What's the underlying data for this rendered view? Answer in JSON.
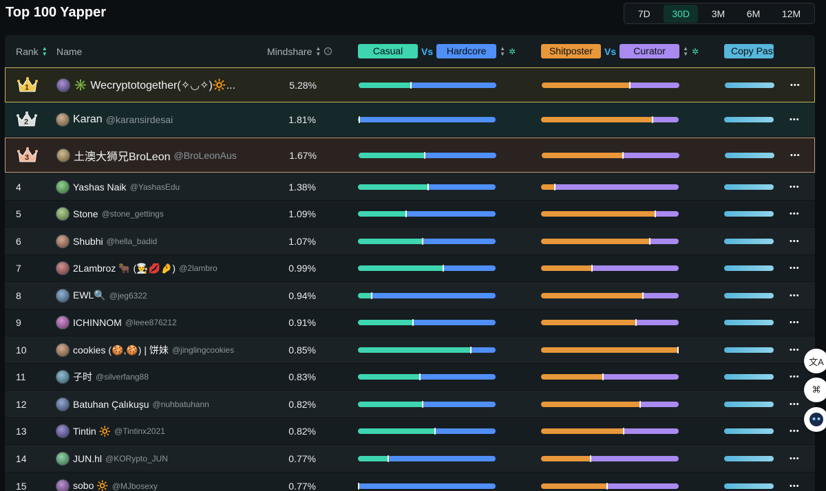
{
  "page": {
    "title": "Top 100 Yapper"
  },
  "periods": {
    "items": [
      "7D",
      "30D",
      "3M",
      "6M",
      "12M"
    ],
    "active": "30D"
  },
  "header": {
    "rank": "Rank",
    "name": "Name",
    "mindshare": "Mindshare",
    "casual": "Casual",
    "vs": "Vs",
    "hardcore": "Hardcore",
    "shitposter": "Shitposter",
    "curator": "Curator",
    "copy": "Copy Past"
  },
  "colors": {
    "accent": "#3fe0b5",
    "casual": "#3dd6b0",
    "hardcore": "#4f8ff7",
    "shitposter": "#e8973a",
    "curator": "#a98af0",
    "copy": "#57b6db"
  },
  "rows": [
    {
      "rank": "1",
      "name": "✳️ Wecryptotogether(✧◡✧)🔆...",
      "handle": "",
      "mindshare": "5.28%",
      "casual_hardcore": 0.38,
      "shit_curator": 0.64,
      "crown": "gold"
    },
    {
      "rank": "2",
      "name": "Karan",
      "handle": "@karansirdesai",
      "mindshare": "1.81%",
      "casual_hardcore": 0.01,
      "shit_curator": 0.81,
      "crown": "silver"
    },
    {
      "rank": "3",
      "name": "土澳大狮兄BroLeon",
      "handle": "@BroLeonAus",
      "mindshare": "1.67%",
      "casual_hardcore": 0.48,
      "shit_curator": 0.59,
      "crown": "bronze"
    },
    {
      "rank": "4",
      "name": "Yashas Naik",
      "handle": "@YashasEdu",
      "mindshare": "1.38%",
      "casual_hardcore": 0.51,
      "shit_curator": 0.1,
      "crown": ""
    },
    {
      "rank": "5",
      "name": "Stone",
      "handle": "@stone_gettings",
      "mindshare": "1.09%",
      "casual_hardcore": 0.35,
      "shit_curator": 0.83,
      "crown": ""
    },
    {
      "rank": "6",
      "name": "Shubhi",
      "handle": "@hella_badid",
      "mindshare": "1.07%",
      "casual_hardcore": 0.47,
      "shit_curator": 0.79,
      "crown": ""
    },
    {
      "rank": "7",
      "name": "2Lambroz 🐂 (👨‍🍳💋🤌)",
      "handle": "@2lambro",
      "mindshare": "0.99%",
      "casual_hardcore": 0.62,
      "shit_curator": 0.37,
      "crown": ""
    },
    {
      "rank": "8",
      "name": "EWL🔍",
      "handle": "@jeg6322",
      "mindshare": "0.94%",
      "casual_hardcore": 0.1,
      "shit_curator": 0.74,
      "crown": ""
    },
    {
      "rank": "9",
      "name": "ICHINNOM",
      "handle": "@leee876212",
      "mindshare": "0.91%",
      "casual_hardcore": 0.4,
      "shit_curator": 0.69,
      "crown": ""
    },
    {
      "rank": "10",
      "name": "cookies (🍪,🍪) | 饼妹",
      "handle": "@jinglingcookies",
      "mindshare": "0.85%",
      "casual_hardcore": 0.82,
      "shit_curator": 1.0,
      "crown": ""
    },
    {
      "rank": "11",
      "name": "子时",
      "handle": "@silverfang88",
      "mindshare": "0.83%",
      "casual_hardcore": 0.45,
      "shit_curator": 0.45,
      "crown": ""
    },
    {
      "rank": "12",
      "name": "Batuhan Çalıkuşu",
      "handle": "@nuhbatuhann",
      "mindshare": "0.82%",
      "casual_hardcore": 0.47,
      "shit_curator": 0.72,
      "crown": ""
    },
    {
      "rank": "13",
      "name": "Tintin 🔆",
      "handle": "@Tintinx2021",
      "mindshare": "0.82%",
      "casual_hardcore": 0.56,
      "shit_curator": 0.6,
      "crown": ""
    },
    {
      "rank": "14",
      "name": "JUN.hl",
      "handle": "@KORypto_JUN",
      "mindshare": "0.77%",
      "casual_hardcore": 0.22,
      "shit_curator": 0.36,
      "crown": ""
    },
    {
      "rank": "15",
      "name": "sobo 🔆",
      "handle": "@MJbosexy",
      "mindshare": "0.77%",
      "casual_hardcore": 0.0,
      "shit_curator": 0.48,
      "crown": ""
    }
  ],
  "side_buttons": {
    "translate": "文A",
    "apps": "⌘"
  }
}
